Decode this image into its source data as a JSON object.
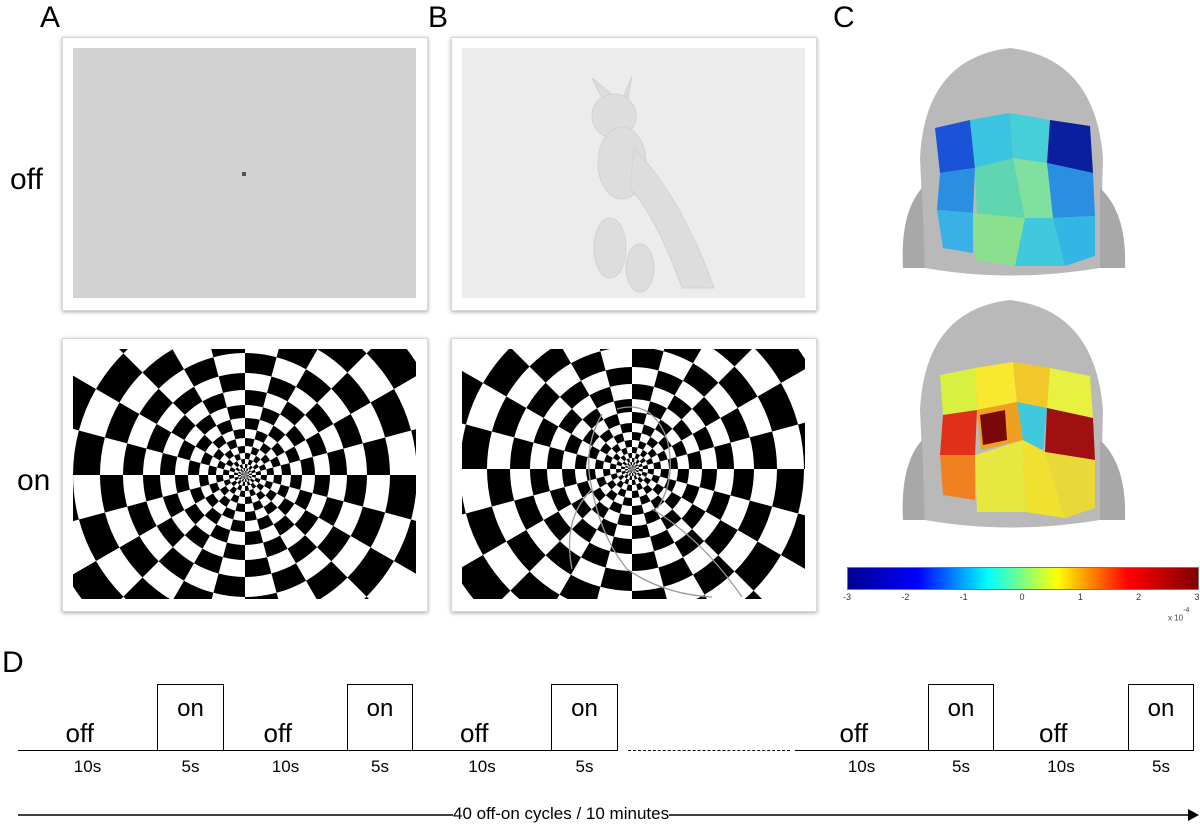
{
  "panels": {
    "a": "A",
    "b": "B",
    "c": "C",
    "d": "D"
  },
  "rows": {
    "off": "off",
    "on": "on"
  },
  "colorbar": {
    "ticks": [
      "-3",
      "-2",
      "-1",
      "0",
      "1",
      "2",
      "3"
    ],
    "range": [
      -3,
      3
    ],
    "exponent_label": "x 10",
    "exponent_power": "-4",
    "colormap": "jet"
  },
  "timeline": {
    "segments": [
      {
        "state": "off",
        "duration": "10s"
      },
      {
        "state": "on",
        "duration": "5s"
      },
      {
        "state": "off",
        "duration": "10s"
      },
      {
        "state": "on",
        "duration": "5s"
      },
      {
        "state": "off",
        "duration": "10s"
      },
      {
        "state": "on",
        "duration": "5s"
      },
      {
        "state": "off",
        "duration": "10s"
      },
      {
        "state": "on",
        "duration": "5s"
      },
      {
        "state": "off",
        "duration": "10s"
      },
      {
        "state": "on",
        "duration": "5s"
      }
    ],
    "arrow_label": "40 off-on cycles / 10 minutes"
  },
  "colors": {
    "gray_screen": "#d3d3d3",
    "movie_screen": "#ececec",
    "head": "#b5b5b5"
  }
}
